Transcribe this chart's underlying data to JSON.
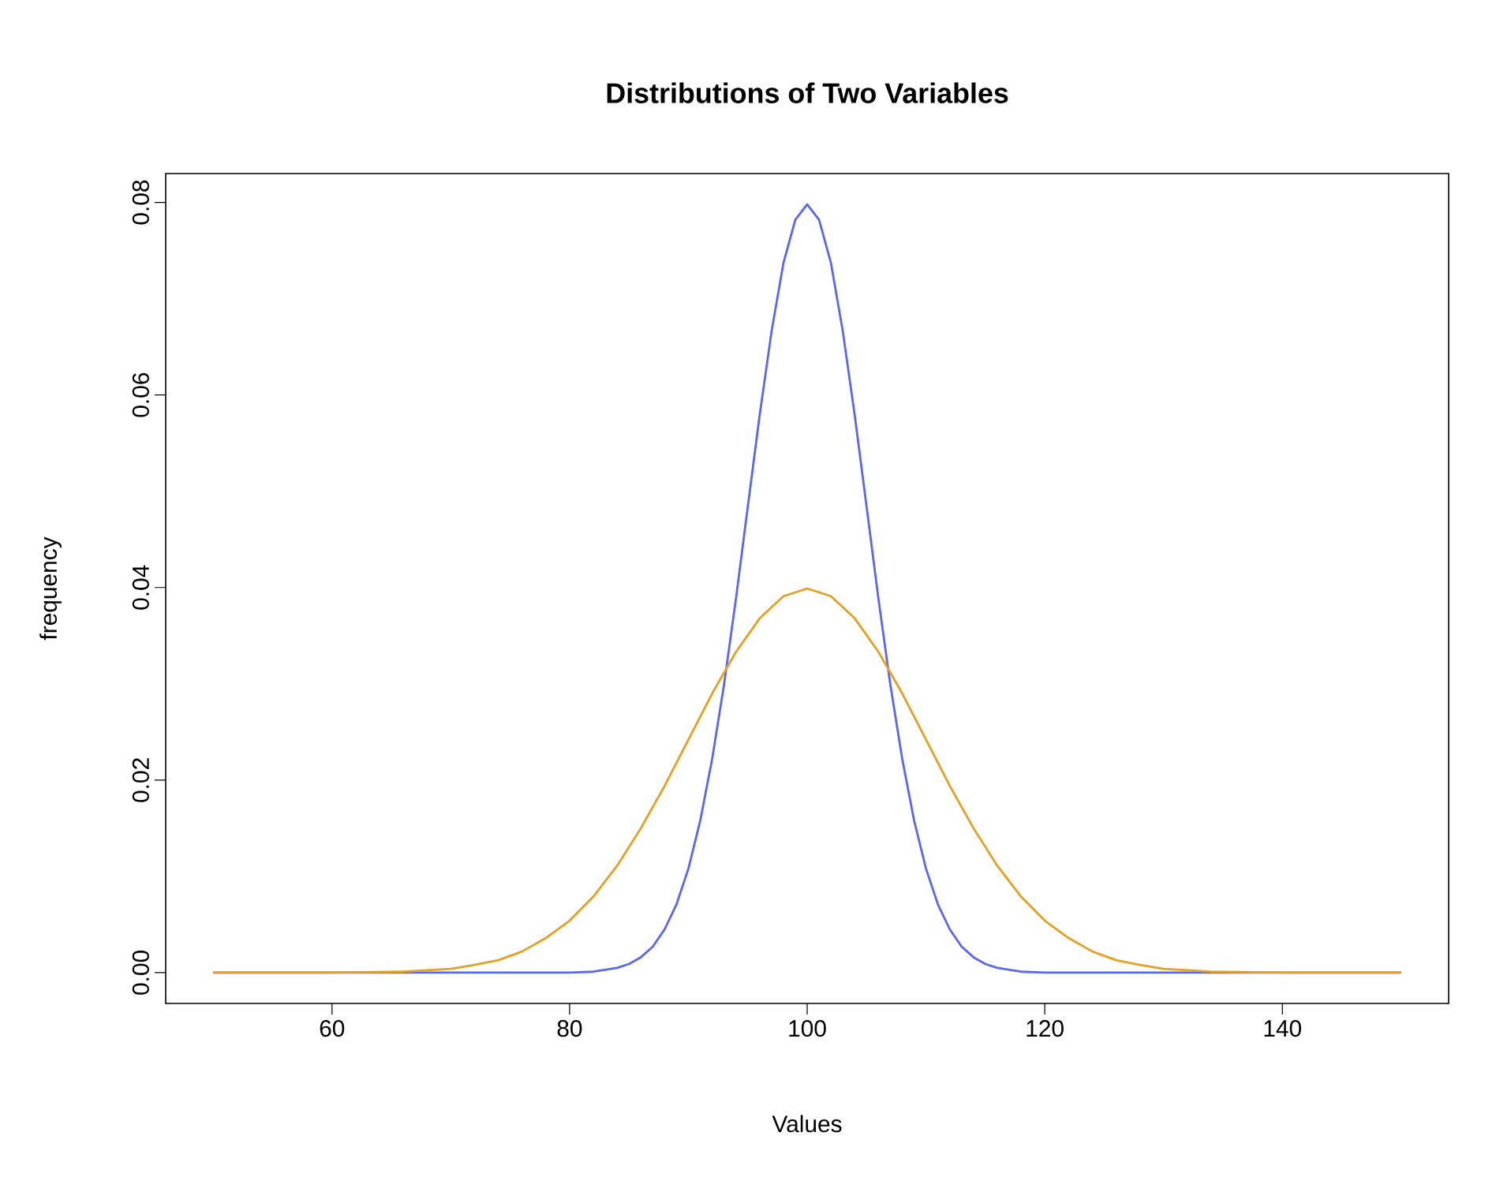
{
  "chart_data": {
    "type": "line",
    "title": "Distributions of Two Variables",
    "xlabel": "Values",
    "ylabel": "frequency",
    "xlim": [
      46,
      154
    ],
    "ylim": [
      -0.0032,
      0.083
    ],
    "xticks": [
      60,
      80,
      100,
      120,
      140
    ],
    "yticks": [
      {
        "value": 0,
        "label": "0.00"
      },
      {
        "value": 0.02,
        "label": "0.02"
      },
      {
        "value": 0.04,
        "label": "0.04"
      },
      {
        "value": 0.06,
        "label": "0.06"
      },
      {
        "value": 0.08,
        "label": "0.08"
      }
    ],
    "series": [
      {
        "color": "#5a66f5",
        "x": [
          50,
          80,
          82,
          84,
          85,
          86,
          87,
          88,
          89,
          90,
          91,
          92,
          93,
          94,
          95,
          96,
          97,
          98,
          99,
          100,
          101,
          102,
          103,
          104,
          105,
          106,
          107,
          108,
          109,
          110,
          111,
          112,
          113,
          114,
          115,
          116,
          118,
          120,
          150
        ],
        "values": [
          0,
          0,
          0.0001,
          0.0005,
          0.0009,
          0.0016,
          0.0027,
          0.0045,
          0.0071,
          0.0108,
          0.0158,
          0.0222,
          0.0299,
          0.0388,
          0.0484,
          0.0579,
          0.0666,
          0.0737,
          0.0782,
          0.0798,
          0.0782,
          0.0737,
          0.0666,
          0.0579,
          0.0484,
          0.0388,
          0.0299,
          0.0222,
          0.0158,
          0.0108,
          0.0071,
          0.0045,
          0.0027,
          0.0016,
          0.0009,
          0.0005,
          0.0001,
          0,
          0
        ]
      },
      {
        "color": "#e8a021",
        "x": [
          50,
          60,
          66,
          70,
          72,
          74,
          76,
          78,
          80,
          82,
          84,
          86,
          88,
          90,
          92,
          94,
          96,
          98,
          100,
          102,
          104,
          106,
          108,
          110,
          112,
          114,
          116,
          118,
          120,
          122,
          124,
          126,
          128,
          130,
          134,
          140,
          150
        ],
        "values": [
          0,
          0,
          0.0001,
          0.0004,
          0.0008,
          0.0013,
          0.0022,
          0.0036,
          0.0054,
          0.0079,
          0.0111,
          0.015,
          0.0194,
          0.0242,
          0.029,
          0.0333,
          0.0368,
          0.0391,
          0.0399,
          0.0391,
          0.0368,
          0.0333,
          0.029,
          0.0242,
          0.0194,
          0.015,
          0.0111,
          0.0079,
          0.0054,
          0.0036,
          0.0022,
          0.0013,
          0.0008,
          0.0004,
          0.0001,
          0,
          0
        ]
      }
    ]
  }
}
